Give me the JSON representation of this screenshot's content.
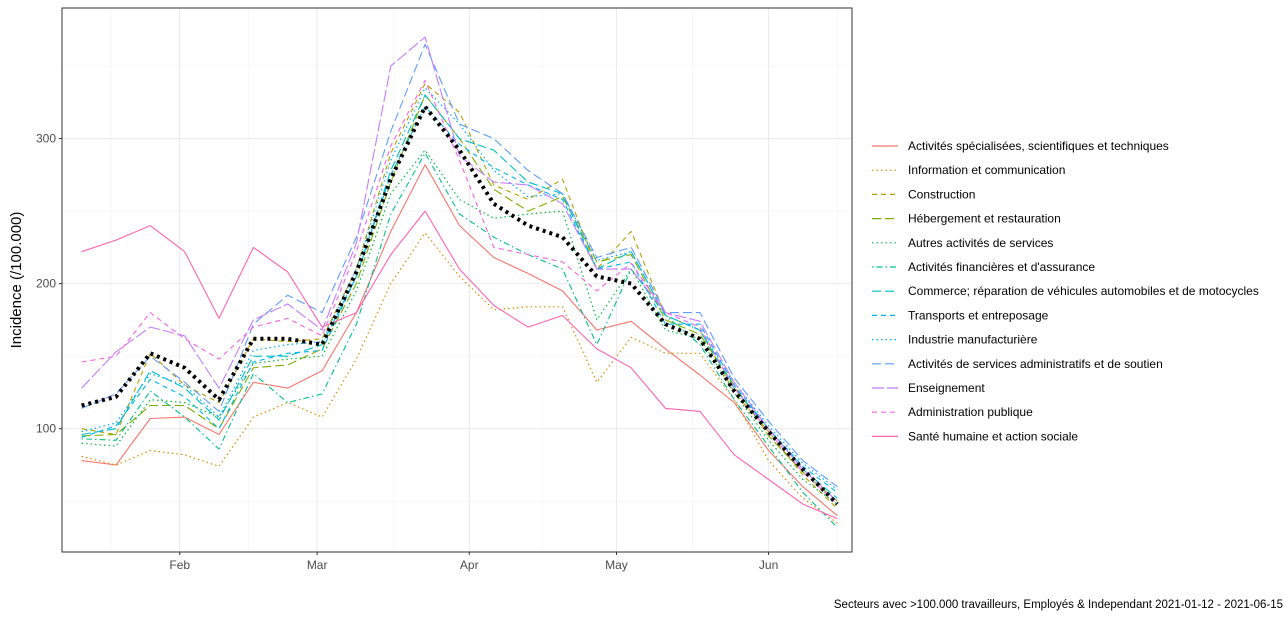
{
  "chart_data": {
    "type": "line",
    "ylabel": "Incidence (/100.000)",
    "xlabel": "",
    "caption": "Secteurs avec >100.000 travailleurs, Employés & Independant 2021-01-12 - 2021-06-15",
    "x_ticks": [
      {
        "date": "2021-02-01",
        "label": "Feb"
      },
      {
        "date": "2021-03-01",
        "label": "Mar"
      },
      {
        "date": "2021-04-01",
        "label": "Apr"
      },
      {
        "date": "2021-05-01",
        "label": "May"
      },
      {
        "date": "2021-06-01",
        "label": "Jun"
      }
    ],
    "y_ticks": [
      100,
      200,
      300
    ],
    "xlim": [
      "2021-01-08",
      "2021-06-18"
    ],
    "ylim": [
      15,
      390
    ],
    "grid": true,
    "legend_position": "right",
    "x": [
      "2021-01-12",
      "2021-01-19",
      "2021-01-26",
      "2021-02-02",
      "2021-02-09",
      "2021-02-16",
      "2021-02-23",
      "2021-03-02",
      "2021-03-09",
      "2021-03-16",
      "2021-03-23",
      "2021-03-30",
      "2021-04-06",
      "2021-04-13",
      "2021-04-20",
      "2021-04-27",
      "2021-05-04",
      "2021-05-11",
      "2021-05-18",
      "2021-05-25",
      "2021-06-01",
      "2021-06-08",
      "2021-06-15"
    ],
    "series": [
      {
        "name": "Activités spécialisées, scientifiques et techniques",
        "color": "#F8766D",
        "dash": "solid",
        "values": [
          78,
          75,
          107,
          108,
          96,
          132,
          128,
          140,
          180,
          236,
          282,
          240,
          218,
          207,
          195,
          168,
          174,
          155,
          137,
          118,
          85,
          60,
          40
        ]
      },
      {
        "name": "Information et communication",
        "color": "#DE8C00",
        "dash": "dotted",
        "values": [
          81,
          75,
          85,
          82,
          74,
          108,
          118,
          108,
          148,
          200,
          235,
          205,
          182,
          184,
          184,
          132,
          163,
          152,
          152,
          120,
          78,
          52,
          35
        ]
      },
      {
        "name": "Construction",
        "color": "#B79F00",
        "dash": "dashed",
        "values": [
          100,
          96,
          152,
          130,
          118,
          162,
          160,
          162,
          210,
          290,
          338,
          318,
          268,
          258,
          272,
          210,
          236,
          178,
          168,
          125,
          98,
          68,
          45
        ]
      },
      {
        "name": "Hébergement et restauration",
        "color": "#7CAE00",
        "dash": "longdash",
        "values": [
          95,
          96,
          116,
          116,
          100,
          142,
          144,
          155,
          200,
          270,
          330,
          300,
          265,
          250,
          260,
          215,
          220,
          175,
          165,
          130,
          95,
          70,
          50
        ]
      },
      {
        "name": "Autres activités de services",
        "color": "#00BA38",
        "dash": "dotted",
        "values": [
          90,
          88,
          120,
          118,
          108,
          145,
          148,
          150,
          195,
          262,
          292,
          258,
          245,
          248,
          250,
          175,
          210,
          168,
          162,
          125,
          92,
          65,
          48
        ]
      },
      {
        "name": "Activités financières et d'assurance",
        "color": "#00C08B",
        "dash": "dotdash",
        "values": [
          93,
          92,
          126,
          108,
          86,
          138,
          118,
          124,
          172,
          248,
          290,
          248,
          232,
          220,
          210,
          158,
          210,
          178,
          158,
          120,
          88,
          56,
          32
        ]
      },
      {
        "name": "Commerce; réparation de véhicules automobiles et de motocycles",
        "color": "#00BFC4",
        "dash": "longdash",
        "values": [
          96,
          100,
          140,
          128,
          106,
          150,
          150,
          158,
          205,
          278,
          330,
          300,
          292,
          270,
          262,
          210,
          222,
          178,
          168,
          128,
          100,
          72,
          52
        ]
      },
      {
        "name": "Transports et entreposage",
        "color": "#00B4F0",
        "dash": "dashed",
        "values": [
          94,
          102,
          134,
          122,
          100,
          146,
          152,
          154,
          205,
          275,
          322,
          296,
          280,
          268,
          258,
          210,
          215,
          172,
          172,
          130,
          100,
          74,
          56
        ]
      },
      {
        "name": "Industrie manufacturière",
        "color": "#00A9FF",
        "dash": "dotted",
        "values": [
          98,
          104,
          138,
          130,
          108,
          154,
          158,
          160,
          210,
          285,
          335,
          310,
          278,
          260,
          262,
          216,
          222,
          178,
          168,
          132,
          102,
          76,
          58
        ]
      },
      {
        "name": "Activités de services administratifs et de soutien",
        "color": "#619CFF",
        "dash": "longdash",
        "values": [
          114,
          124,
          150,
          132,
          112,
          172,
          192,
          180,
          232,
          305,
          365,
          310,
          300,
          278,
          262,
          218,
          225,
          180,
          180,
          135,
          105,
          78,
          60
        ]
      },
      {
        "name": "Enseignement",
        "color": "#C77CFF",
        "dash": "longdash2",
        "values": [
          128,
          153,
          170,
          164,
          128,
          175,
          186,
          168,
          228,
          350,
          370,
          288,
          270,
          268,
          255,
          210,
          210,
          180,
          174,
          132,
          100,
          72,
          50
        ]
      },
      {
        "name": "Administration publique",
        "color": "#F564E3",
        "dash": "dashed",
        "values": [
          146,
          150,
          180,
          162,
          148,
          170,
          176,
          164,
          222,
          295,
          340,
          285,
          225,
          220,
          215,
          195,
          214,
          180,
          170,
          128,
          98,
          70,
          48
        ]
      },
      {
        "name": "Santé humaine et action sociale",
        "color": "#FF64B0",
        "dash": "solid",
        "values": [
          222,
          230,
          240,
          222,
          176,
          225,
          208,
          170,
          180,
          220,
          250,
          210,
          185,
          170,
          178,
          155,
          142,
          114,
          112,
          82,
          65,
          48,
          38
        ]
      },
      {
        "name": "",
        "color": "#000000",
        "dash": "thickdot",
        "values": [
          116,
          122,
          152,
          142,
          120,
          162,
          162,
          158,
          208,
          272,
          322,
          292,
          255,
          240,
          232,
          205,
          200,
          172,
          162,
          126,
          98,
          72,
          48
        ]
      }
    ]
  }
}
